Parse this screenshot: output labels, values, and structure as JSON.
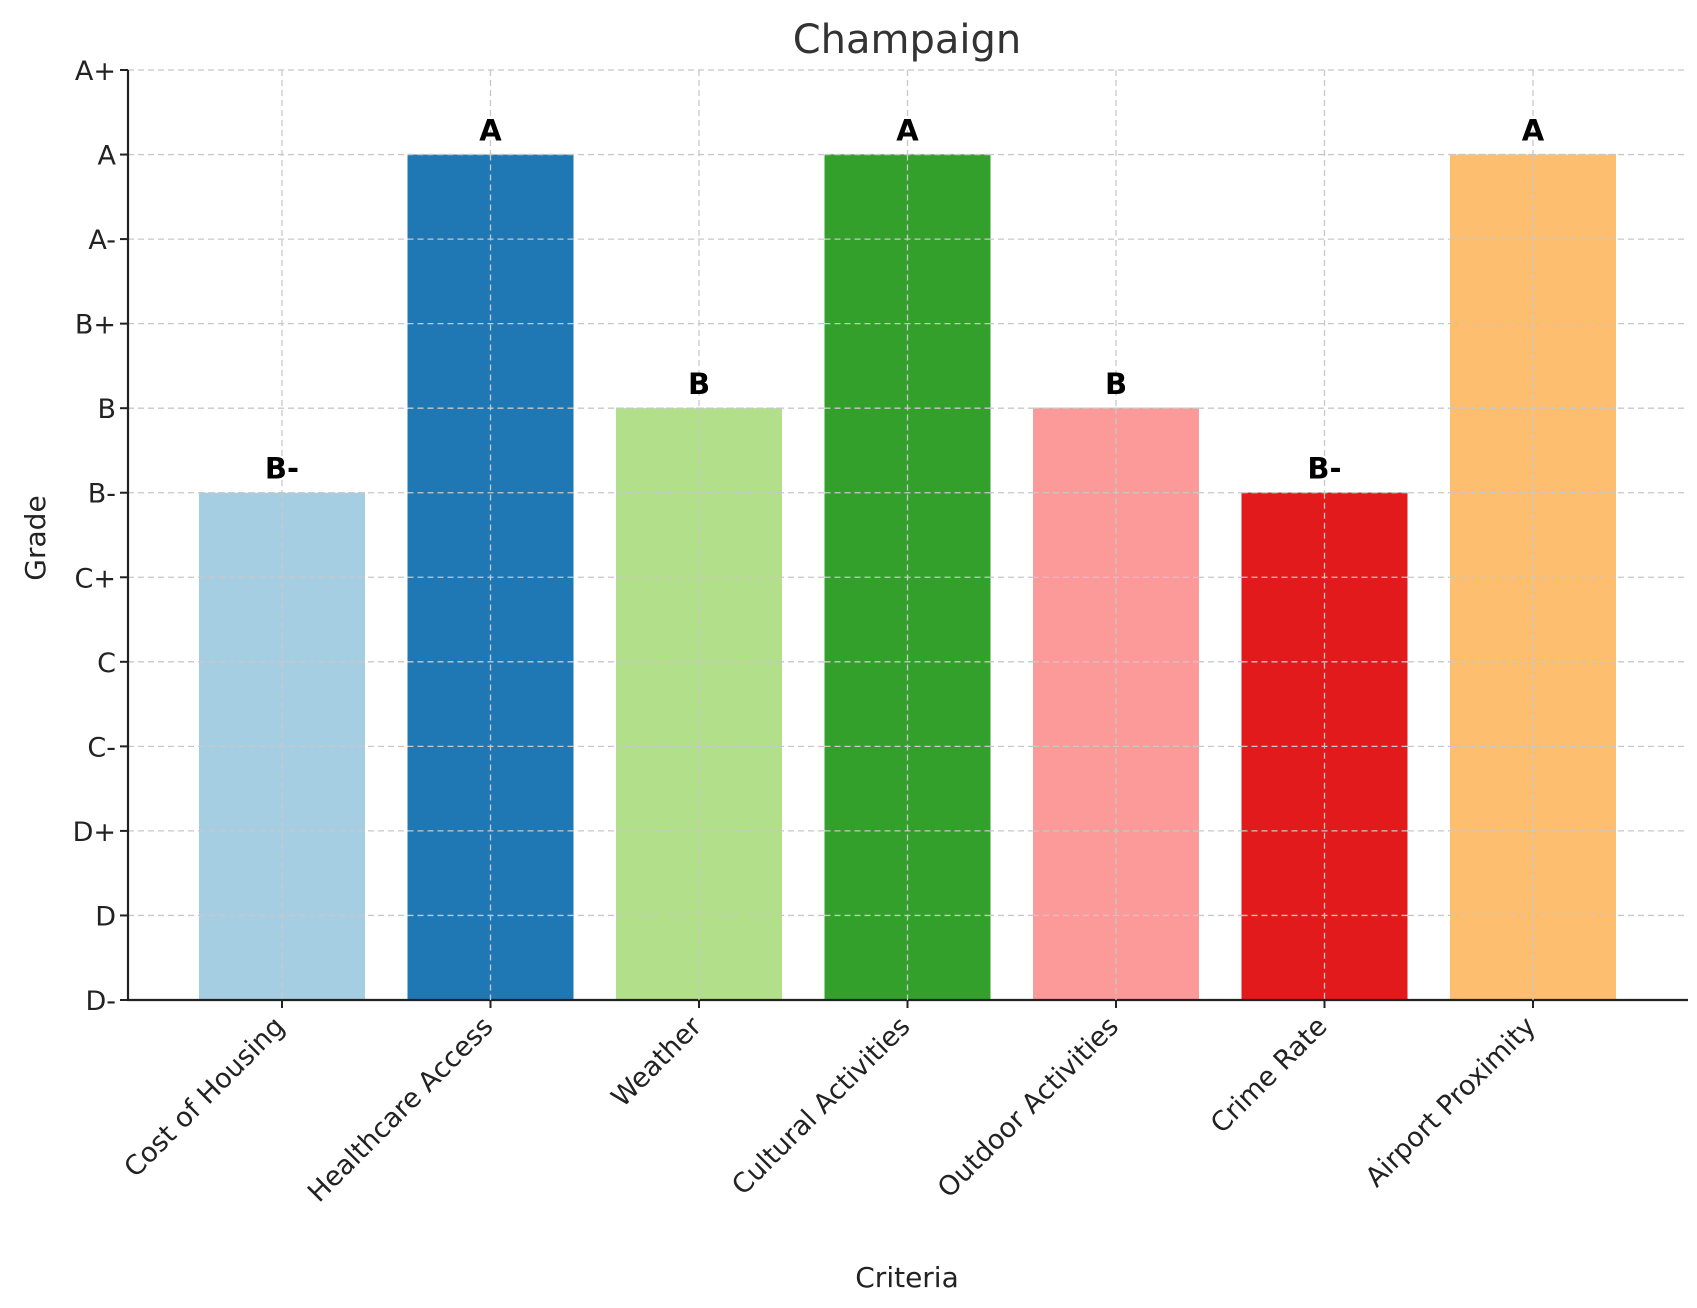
{
  "chart_data": {
    "type": "bar",
    "title": "Champaign",
    "xlabel": "Criteria",
    "ylabel": "Grade",
    "grade_scale": [
      "D-",
      "D",
      "D+",
      "C-",
      "C",
      "C+",
      "B-",
      "B",
      "B+",
      "A-",
      "A",
      "A+"
    ],
    "categories": [
      "Cost of Housing",
      "Healthcare Access",
      "Weather",
      "Cultural Activities",
      "Outdoor Activities",
      "Crime Rate",
      "Airport Proximity"
    ],
    "values": [
      "B-",
      "A",
      "B",
      "A",
      "B",
      "B-",
      "A"
    ],
    "colors": [
      "#a6cee3",
      "#1f78b4",
      "#b2df8a",
      "#33a02c",
      "#fb9a99",
      "#e31a1c",
      "#fdbf6f"
    ],
    "ylim": [
      "D-",
      "A+"
    ],
    "grid": true,
    "legend": false
  }
}
